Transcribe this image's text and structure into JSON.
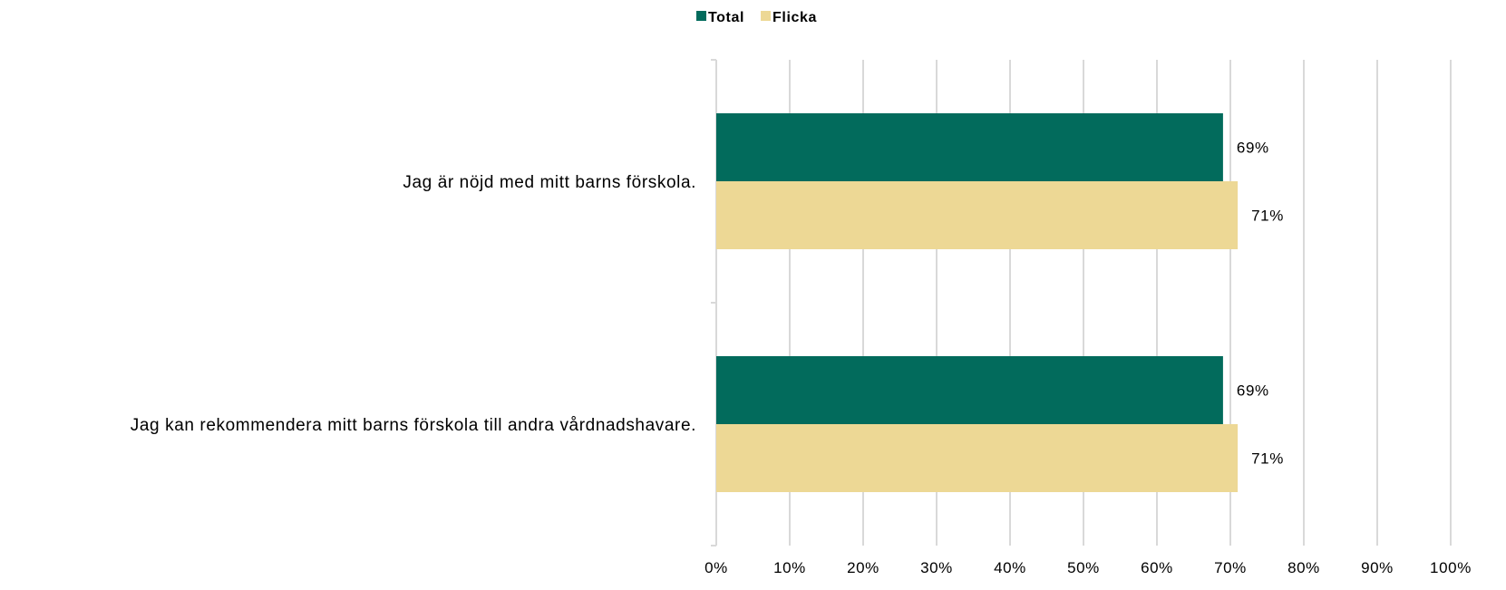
{
  "chart_data": {
    "type": "bar",
    "orientation": "horizontal",
    "categories": [
      "Jag är nöjd med mitt barns förskola.",
      "Jag kan rekommendera mitt barns förskola till andra vårdnadshavare."
    ],
    "series": [
      {
        "name": "Total",
        "values": [
          69,
          69
        ],
        "labels": [
          "69%",
          "69%"
        ],
        "color": "#026b5c"
      },
      {
        "name": "Flicka",
        "values": [
          71,
          71
        ],
        "labels": [
          "71%",
          "71%"
        ],
        "color": "#edd895"
      }
    ],
    "xlim": [
      0,
      100
    ],
    "xticks": [
      "0%",
      "10%",
      "20%",
      "30%",
      "40%",
      "50%",
      "60%",
      "70%",
      "80%",
      "90%",
      "100%"
    ],
    "grid": true,
    "legend": "top-center",
    "gridColor": "#d9d9d9"
  }
}
